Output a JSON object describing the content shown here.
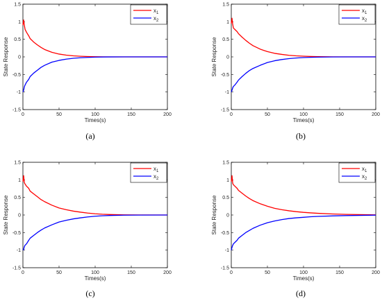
{
  "chart_data": [
    {
      "type": "line",
      "caption": "(a)",
      "xlabel": "Times(s)",
      "ylabel": "State Response",
      "xlim": [
        0,
        200
      ],
      "ylim": [
        -1.5,
        1.5
      ],
      "xticks": [
        "0",
        "50",
        "100",
        "150",
        "200"
      ],
      "yticks": [
        "-1.5",
        "-1",
        "-0.5",
        "0",
        "0.5",
        "1",
        "1.5"
      ],
      "legend_position": "top-right",
      "series": [
        {
          "name": "x",
          "subscript": "1",
          "color": "#ff0000",
          "x": [
            0,
            1,
            2,
            3,
            5,
            8,
            10,
            15,
            20,
            25,
            30,
            40,
            50,
            60,
            70,
            80,
            90,
            100,
            110,
            120,
            140,
            160,
            200
          ],
          "y": [
            0.9,
            1.05,
            0.9,
            0.78,
            0.7,
            0.6,
            0.52,
            0.42,
            0.34,
            0.27,
            0.21,
            0.13,
            0.08,
            0.05,
            0.03,
            0.018,
            0.01,
            0.005,
            0.002,
            0.0,
            0.0,
            0.0,
            0.0
          ]
        },
        {
          "name": "x",
          "subscript": "2",
          "color": "#0000ff",
          "x": [
            0,
            1,
            2,
            3,
            5,
            8,
            10,
            15,
            20,
            25,
            30,
            40,
            50,
            60,
            70,
            80,
            90,
            100,
            110,
            120,
            140,
            160,
            200
          ],
          "y": [
            -1.0,
            -0.95,
            -0.85,
            -0.8,
            -0.72,
            -0.64,
            -0.56,
            -0.46,
            -0.38,
            -0.3,
            -0.24,
            -0.15,
            -0.1,
            -0.065,
            -0.04,
            -0.025,
            -0.015,
            -0.008,
            -0.004,
            -0.001,
            0.0,
            0.0,
            0.0
          ]
        }
      ]
    },
    {
      "type": "line",
      "caption": "(b)",
      "xlabel": "Times(s)",
      "ylabel": "State Response",
      "xlim": [
        0,
        200
      ],
      "ylim": [
        -1.5,
        1.5
      ],
      "xticks": [
        "0",
        "50",
        "100",
        "150",
        "200"
      ],
      "yticks": [
        "-1.5",
        "-1",
        "-0.5",
        "0",
        "0.5",
        "1",
        "1.5"
      ],
      "legend_position": "top-right",
      "series": [
        {
          "name": "x",
          "subscript": "1",
          "color": "#ff0000",
          "x": [
            0,
            1,
            2,
            3,
            5,
            8,
            10,
            15,
            20,
            25,
            30,
            40,
            50,
            60,
            70,
            80,
            90,
            100,
            110,
            120,
            140,
            160,
            200
          ],
          "y": [
            0.95,
            1.1,
            0.92,
            0.82,
            0.78,
            0.72,
            0.66,
            0.56,
            0.47,
            0.39,
            0.32,
            0.22,
            0.15,
            0.1,
            0.07,
            0.045,
            0.03,
            0.02,
            0.012,
            0.007,
            0.002,
            0.0,
            0.0
          ]
        },
        {
          "name": "x",
          "subscript": "2",
          "color": "#0000ff",
          "x": [
            0,
            1,
            2,
            3,
            5,
            8,
            10,
            15,
            20,
            25,
            30,
            40,
            50,
            60,
            70,
            80,
            90,
            100,
            110,
            120,
            140,
            160,
            200
          ],
          "y": [
            -1.0,
            -0.95,
            -0.88,
            -0.84,
            -0.8,
            -0.72,
            -0.66,
            -0.56,
            -0.47,
            -0.39,
            -0.33,
            -0.24,
            -0.16,
            -0.11,
            -0.075,
            -0.05,
            -0.032,
            -0.02,
            -0.012,
            -0.007,
            -0.002,
            0.0,
            0.0
          ]
        }
      ]
    },
    {
      "type": "line",
      "caption": "(c)",
      "xlabel": "Times(s)",
      "ylabel": "State Response",
      "xlim": [
        0,
        200
      ],
      "ylim": [
        -1.5,
        1.5
      ],
      "xticks": [
        "0",
        "50",
        "100",
        "150",
        "200"
      ],
      "yticks": [
        "-1.5",
        "-1",
        "-0.5",
        "0",
        "0.5",
        "1",
        "1.5"
      ],
      "legend_position": "top-right",
      "series": [
        {
          "name": "x",
          "subscript": "1",
          "color": "#ff0000",
          "x": [
            0,
            1,
            2,
            3,
            5,
            8,
            10,
            15,
            20,
            25,
            30,
            40,
            50,
            60,
            70,
            80,
            90,
            100,
            110,
            120,
            140,
            160,
            200
          ],
          "y": [
            0.95,
            1.12,
            0.92,
            0.88,
            0.82,
            0.76,
            0.68,
            0.6,
            0.52,
            0.44,
            0.38,
            0.28,
            0.2,
            0.15,
            0.11,
            0.08,
            0.055,
            0.035,
            0.022,
            0.014,
            0.005,
            0.002,
            0.0
          ]
        },
        {
          "name": "x",
          "subscript": "2",
          "color": "#0000ff",
          "x": [
            0,
            1,
            2,
            3,
            5,
            8,
            10,
            15,
            20,
            25,
            30,
            40,
            50,
            60,
            70,
            80,
            90,
            100,
            110,
            120,
            140,
            160,
            200
          ],
          "y": [
            -1.0,
            -0.98,
            -0.9,
            -0.86,
            -0.82,
            -0.72,
            -0.66,
            -0.58,
            -0.5,
            -0.43,
            -0.37,
            -0.28,
            -0.2,
            -0.15,
            -0.11,
            -0.08,
            -0.055,
            -0.035,
            -0.022,
            -0.014,
            -0.005,
            -0.002,
            0.0
          ]
        }
      ]
    },
    {
      "type": "line",
      "caption": "(d)",
      "xlabel": "Times(s)",
      "ylabel": "State Response",
      "xlim": [
        0,
        200
      ],
      "ylim": [
        -1.5,
        1.5
      ],
      "xticks": [
        "0",
        "50",
        "100",
        "150",
        "200"
      ],
      "yticks": [
        "-1.5",
        "-1",
        "-0.5",
        "0",
        "0.5",
        "1",
        "1.5"
      ],
      "legend_position": "top-right",
      "series": [
        {
          "name": "x",
          "subscript": "1",
          "color": "#ff0000",
          "x": [
            0,
            1,
            2,
            3,
            5,
            8,
            10,
            15,
            20,
            25,
            30,
            40,
            50,
            60,
            70,
            80,
            90,
            100,
            110,
            120,
            140,
            160,
            200
          ],
          "y": [
            0.95,
            1.12,
            0.9,
            0.86,
            0.82,
            0.76,
            0.7,
            0.62,
            0.54,
            0.47,
            0.41,
            0.32,
            0.25,
            0.19,
            0.15,
            0.12,
            0.095,
            0.075,
            0.06,
            0.048,
            0.03,
            0.018,
            0.005
          ]
        },
        {
          "name": "x",
          "subscript": "2",
          "color": "#0000ff",
          "x": [
            0,
            1,
            2,
            3,
            5,
            8,
            10,
            15,
            20,
            25,
            30,
            40,
            50,
            60,
            70,
            80,
            90,
            100,
            110,
            120,
            140,
            160,
            200
          ],
          "y": [
            -1.0,
            -0.92,
            -0.86,
            -0.82,
            -0.78,
            -0.72,
            -0.66,
            -0.58,
            -0.5,
            -0.44,
            -0.38,
            -0.29,
            -0.22,
            -0.17,
            -0.13,
            -0.1,
            -0.08,
            -0.065,
            -0.05,
            -0.04,
            -0.026,
            -0.016,
            -0.004
          ]
        }
      ]
    }
  ]
}
